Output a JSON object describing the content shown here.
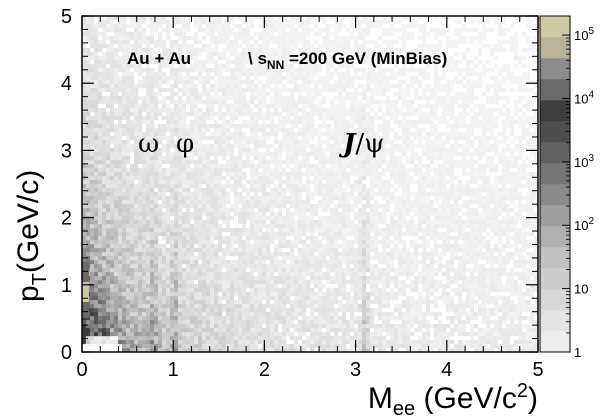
{
  "chart_data": {
    "type": "heatmap",
    "title": "",
    "x": {
      "label_main": "M",
      "label_sub": "ee",
      "label_rest": " (GeV/c",
      "label_sup": "2",
      "label_end": ")",
      "range": [
        0,
        5
      ],
      "ticks": [
        0,
        1,
        2,
        3,
        4,
        5
      ],
      "tick_labels": [
        "0",
        "1",
        "2",
        "3",
        "4",
        "5"
      ]
    },
    "y": {
      "label_main": "p",
      "label_sub": "T",
      "label_rest": "(GeV/c)",
      "range": [
        0,
        5
      ],
      "ticks": [
        0,
        1,
        2,
        3,
        4,
        5
      ],
      "tick_labels": [
        "0",
        "1",
        "2",
        "3",
        "4",
        "5"
      ]
    },
    "z": {
      "scale": "log",
      "range": [
        1,
        200000
      ],
      "ticks": [
        1,
        10,
        100,
        1000,
        10000,
        100000
      ],
      "tick_labels": [
        {
          "base": "1",
          "exp": ""
        },
        {
          "base": "10",
          "exp": ""
        },
        {
          "base": "10",
          "exp": "2"
        },
        {
          "base": "10",
          "exp": "3"
        },
        {
          "base": "10",
          "exp": "4"
        },
        {
          "base": "10",
          "exp": "5"
        }
      ],
      "palette": [
        "#ececec",
        "#e3e3e3",
        "#d8d8d8",
        "#cdcdcd",
        "#c0c0c0",
        "#b0b0b0",
        "#9e9e9e",
        "#8a8a8a",
        "#767676",
        "#626262",
        "#4e4e4e",
        "#3e3e3e",
        "#6a6a6a",
        "#8c8c8c",
        "#b9b39a",
        "#cec9a5"
      ]
    },
    "annotations": {
      "system": "Au + Au",
      "energy_prefix": "\\ s",
      "energy_sub": "NN",
      "energy_rest": " =200 GeV (MinBias)",
      "omega": "ω",
      "phi": "φ",
      "jpsi_J": "J",
      "jpsi_rest": "/ψ"
    },
    "features": {
      "low_mass_continuum": "intense at M < 0.5 GeV/c², pT < 2 GeV/c",
      "peaks_mass": [
        0.78,
        1.02,
        3.1
      ],
      "grid": false
    }
  }
}
